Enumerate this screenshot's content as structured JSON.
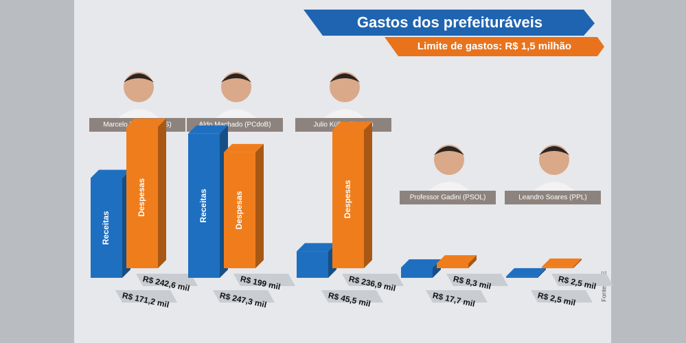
{
  "chart_data": {
    "type": "bar",
    "title": "Gastos dos prefeituráveis",
    "subtitle": "Limite de gastos: R$ 1,5 milhão",
    "categories": [
      "Marcelo Rangel (PPS)",
      "Aldo Machado (PCdoB)",
      "Julio Küller (PMDB)",
      "Professor Gadini (PSOL)",
      "Leandro Soares (PPL)"
    ],
    "series": [
      {
        "name": "Receitas",
        "color": "#1f6fc0",
        "values": [
          171.2,
          247.3,
          45.5,
          17.7,
          2.5
        ],
        "value_labels": [
          "R$ 171,2 mil",
          "R$ 247,3 mil",
          "R$ 45,5 mil",
          "R$ 17,7 mil",
          "R$ 2,5 mil"
        ]
      },
      {
        "name": "Despesas",
        "color": "#f07d1c",
        "values": [
          242.6,
          199,
          236.9,
          8.3,
          2.5
        ],
        "value_labels": [
          "R$ 242,6 mil",
          "R$ 199 mil",
          "R$ 236,9 mil",
          "R$ 8,3 mil",
          "R$ 2,5 mil"
        ]
      }
    ],
    "source": "Fonte: TSE"
  }
}
